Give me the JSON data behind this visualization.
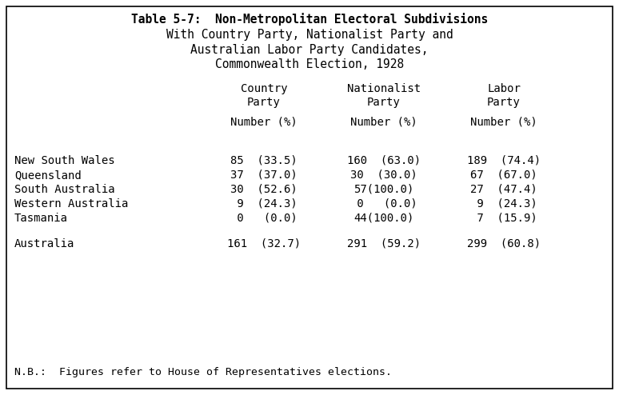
{
  "title_lines": [
    "Table 5-7:  Non-Metropolitan Electoral Subdivisions",
    "With Country Party, Nationalist Party and",
    "Australian Labor Party Candidates,",
    "Commonwealth Election, 1928"
  ],
  "col_headers_row1": [
    "Country",
    "Nationalist",
    "Labor"
  ],
  "col_headers_row2": [
    "Party",
    "Party",
    "Party"
  ],
  "col_subheaders": [
    "Number (%)",
    "Number (%)",
    "Number (%)"
  ],
  "row_labels": [
    "New South Wales",
    "Queensland",
    "South Australia",
    "Western Australia",
    "Tasmania"
  ],
  "data_rows": [
    [
      "85  (33.5)",
      "160  (63.0)",
      "189  (74.4)"
    ],
    [
      "37  (37.0)",
      "30  (30.0)",
      "67  (67.0)"
    ],
    [
      "30  (52.6)",
      "57(100.0)",
      "27  (47.4)"
    ],
    [
      " 9  (24.3)",
      " 0   (0.0)",
      " 9  (24.3)"
    ],
    [
      " 0   (0.0)",
      "44(100.0)",
      " 7  (15.9)"
    ]
  ],
  "total_label": "Australia",
  "total_row": [
    "161  (32.7)",
    "291  (59.2)",
    "299  (60.8)"
  ],
  "footnote": "N.B.:  Figures refer to House of Representatives elections.",
  "bg_color": "#ffffff",
  "border_color": "#000000",
  "text_color": "#000000",
  "font_family": "DejaVu Sans Mono",
  "title_fontsize": 10.5,
  "header_fontsize": 10.0,
  "data_fontsize": 10.0,
  "footnote_fontsize": 9.5,
  "title_bold_first": true
}
